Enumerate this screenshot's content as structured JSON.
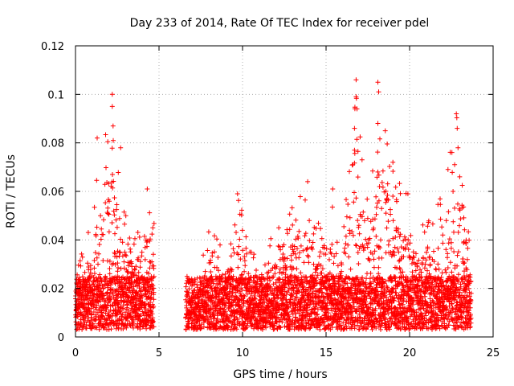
{
  "chart_data": {
    "type": "scatter",
    "title": "Day 233 of 2014, Rate Of TEC Index for receiver pdel",
    "xlabel": "GPS time / hours",
    "ylabel": "ROTI / TECUs",
    "xlim": [
      0,
      25
    ],
    "ylim": [
      0,
      0.12
    ],
    "xticks": [
      0,
      5,
      10,
      15,
      20,
      25
    ],
    "yticks": [
      0,
      0.02,
      0.04,
      0.06,
      0.08,
      0.1,
      0.12
    ],
    "xtick_labels": [
      "0",
      "5",
      "10",
      "15",
      "20",
      "25"
    ],
    "ytick_labels": [
      "0",
      "0.02",
      "0.04",
      "0.06",
      "0.08",
      "0.1",
      "0.12"
    ],
    "grid": true,
    "marker": "+",
    "color": "#ff0000",
    "series": [
      {
        "name": "pdel",
        "segments": [
          {
            "start": 0.0,
            "end": 4.7
          },
          {
            "start": 6.6,
            "end": 23.7
          }
        ],
        "envelope_x": [
          0,
          0.5,
          1.0,
          1.5,
          2.0,
          2.5,
          3.0,
          3.5,
          4.0,
          4.5,
          6.7,
          7.5,
          8.0,
          9.0,
          9.8,
          10.5,
          11.5,
          12.5,
          13.5,
          14.5,
          15.2,
          16.0,
          16.8,
          17.5,
          18.2,
          19.0,
          19.8,
          20.5,
          21.5,
          22.2,
          22.8,
          23.2,
          23.7
        ],
        "envelope_y": [
          0.03,
          0.04,
          0.048,
          0.082,
          0.1,
          0.078,
          0.052,
          0.04,
          0.055,
          0.06,
          0.018,
          0.03,
          0.046,
          0.038,
          0.059,
          0.035,
          0.04,
          0.048,
          0.064,
          0.05,
          0.06,
          0.045,
          0.106,
          0.058,
          0.105,
          0.072,
          0.059,
          0.045,
          0.055,
          0.069,
          0.092,
          0.06,
          0.04
        ],
        "baseline_range": [
          0.003,
          0.025
        ],
        "peaks": [
          {
            "x": 2.2,
            "y": 0.1
          },
          {
            "x": 2.2,
            "y": 0.095
          },
          {
            "x": 2.25,
            "y": 0.087
          },
          {
            "x": 1.3,
            "y": 0.082
          },
          {
            "x": 2.7,
            "y": 0.078
          },
          {
            "x": 4.3,
            "y": 0.061
          },
          {
            "x": 9.7,
            "y": 0.059
          },
          {
            "x": 13.9,
            "y": 0.064
          },
          {
            "x": 15.4,
            "y": 0.061
          },
          {
            "x": 16.8,
            "y": 0.106
          },
          {
            "x": 16.8,
            "y": 0.099
          },
          {
            "x": 16.85,
            "y": 0.094
          },
          {
            "x": 16.7,
            "y": 0.086
          },
          {
            "x": 16.7,
            "y": 0.077
          },
          {
            "x": 16.6,
            "y": 0.071
          },
          {
            "x": 18.1,
            "y": 0.105
          },
          {
            "x": 18.15,
            "y": 0.101
          },
          {
            "x": 18.1,
            "y": 0.088
          },
          {
            "x": 18.1,
            "y": 0.068
          },
          {
            "x": 18.2,
            "y": 0.062
          },
          {
            "x": 19.0,
            "y": 0.072
          },
          {
            "x": 19.0,
            "y": 0.058
          },
          {
            "x": 19.9,
            "y": 0.059
          },
          {
            "x": 22.3,
            "y": 0.069
          },
          {
            "x": 22.8,
            "y": 0.092
          },
          {
            "x": 22.85,
            "y": 0.086
          },
          {
            "x": 22.9,
            "y": 0.078
          },
          {
            "x": 23.0,
            "y": 0.066
          },
          {
            "x": 22.6,
            "y": 0.06
          }
        ]
      }
    ]
  }
}
